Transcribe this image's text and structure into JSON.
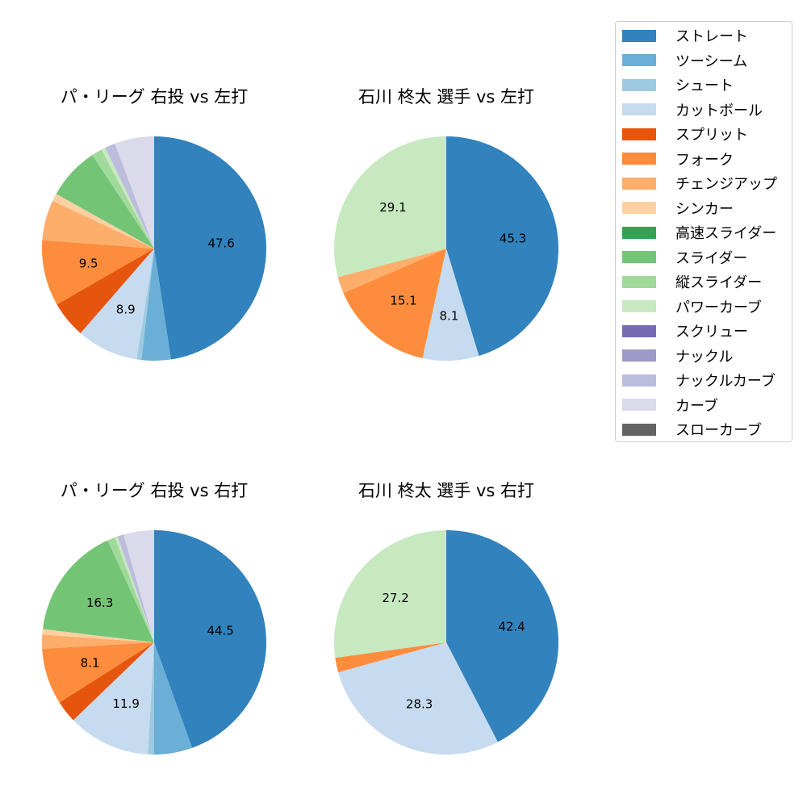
{
  "legend": {
    "items": [
      {
        "label": "ストレート",
        "color": "#3182bd"
      },
      {
        "label": "ツーシーム",
        "color": "#6baed6"
      },
      {
        "label": "シュート",
        "color": "#9ecae1"
      },
      {
        "label": "カットボール",
        "color": "#c6dbef"
      },
      {
        "label": "スプリット",
        "color": "#e6550d"
      },
      {
        "label": "フォーク",
        "color": "#fd8d3c"
      },
      {
        "label": "チェンジアップ",
        "color": "#fdae6b"
      },
      {
        "label": "シンカー",
        "color": "#fdd0a2"
      },
      {
        "label": "高速スライダー",
        "color": "#31a354"
      },
      {
        "label": "スライダー",
        "color": "#74c476"
      },
      {
        "label": "縦スライダー",
        "color": "#a1d99b"
      },
      {
        "label": "パワーカーブ",
        "color": "#c7e9c0"
      },
      {
        "label": "スクリュー",
        "color": "#756bb1"
      },
      {
        "label": "ナックル",
        "color": "#9e9ac8"
      },
      {
        "label": "ナックルカーブ",
        "color": "#bcbddc"
      },
      {
        "label": "カーブ",
        "color": "#dadaeb"
      },
      {
        "label": "スローカーブ",
        "color": "#636363"
      }
    ]
  },
  "chart_data": [
    {
      "type": "pie",
      "title": "パ・リーグ 右投 vs 左打",
      "categories": [
        "ストレート",
        "ツーシーム",
        "シュート",
        "カットボール",
        "スプリット",
        "フォーク",
        "チェンジアップ",
        "シンカー",
        "スライダー",
        "縦スライダー",
        "パワーカーブ",
        "ナックルカーブ",
        "カーブ"
      ],
      "values": [
        47.6,
        4.2,
        0.7,
        8.9,
        5.3,
        9.5,
        5.8,
        1.1,
        7.6,
        1.5,
        0.6,
        1.5,
        5.7
      ],
      "labels_shown": {
        "ストレート": "47.6",
        "カットボール": "8.9",
        "フォーク": "9.5"
      },
      "start_angle": 90,
      "direction": "clockwise"
    },
    {
      "type": "pie",
      "title": "石川 柊太 選手 vs 左打",
      "categories": [
        "ストレート",
        "カットボール",
        "フォーク",
        "チェンジアップ",
        "パワーカーブ"
      ],
      "values": [
        45.3,
        8.1,
        15.1,
        2.4,
        29.1
      ],
      "labels_shown": {
        "ストレート": "45.3",
        "カットボール": "8.1",
        "フォーク": "15.1",
        "パワーカーブ": "29.1"
      },
      "start_angle": 90,
      "direction": "clockwise"
    },
    {
      "type": "pie",
      "title": "パ・リーグ 右投 vs 右打",
      "categories": [
        "ストレート",
        "ツーシーム",
        "シュート",
        "カットボール",
        "スプリット",
        "フォーク",
        "チェンジアップ",
        "シンカー",
        "スライダー",
        "縦スライダー",
        "パワーカーブ",
        "ナックルカーブ",
        "カーブ"
      ],
      "values": [
        44.5,
        5.5,
        0.9,
        11.9,
        3.2,
        8.1,
        2.0,
        0.8,
        16.3,
        1.1,
        0.4,
        0.9,
        4.4
      ],
      "labels_shown": {
        "ストレート": "44.5",
        "カットボール": "11.9",
        "フォーク": "8.1",
        "スライダー": "16.3"
      },
      "start_angle": 90,
      "direction": "clockwise"
    },
    {
      "type": "pie",
      "title": "石川 柊太 選手 vs 右打",
      "categories": [
        "ストレート",
        "カットボール",
        "フォーク",
        "パワーカーブ"
      ],
      "values": [
        42.4,
        28.3,
        2.1,
        27.2
      ],
      "labels_shown": {
        "ストレート": "42.4",
        "カットボール": "28.3",
        "パワーカーブ": "27.2"
      },
      "start_angle": 90,
      "direction": "clockwise"
    }
  ]
}
